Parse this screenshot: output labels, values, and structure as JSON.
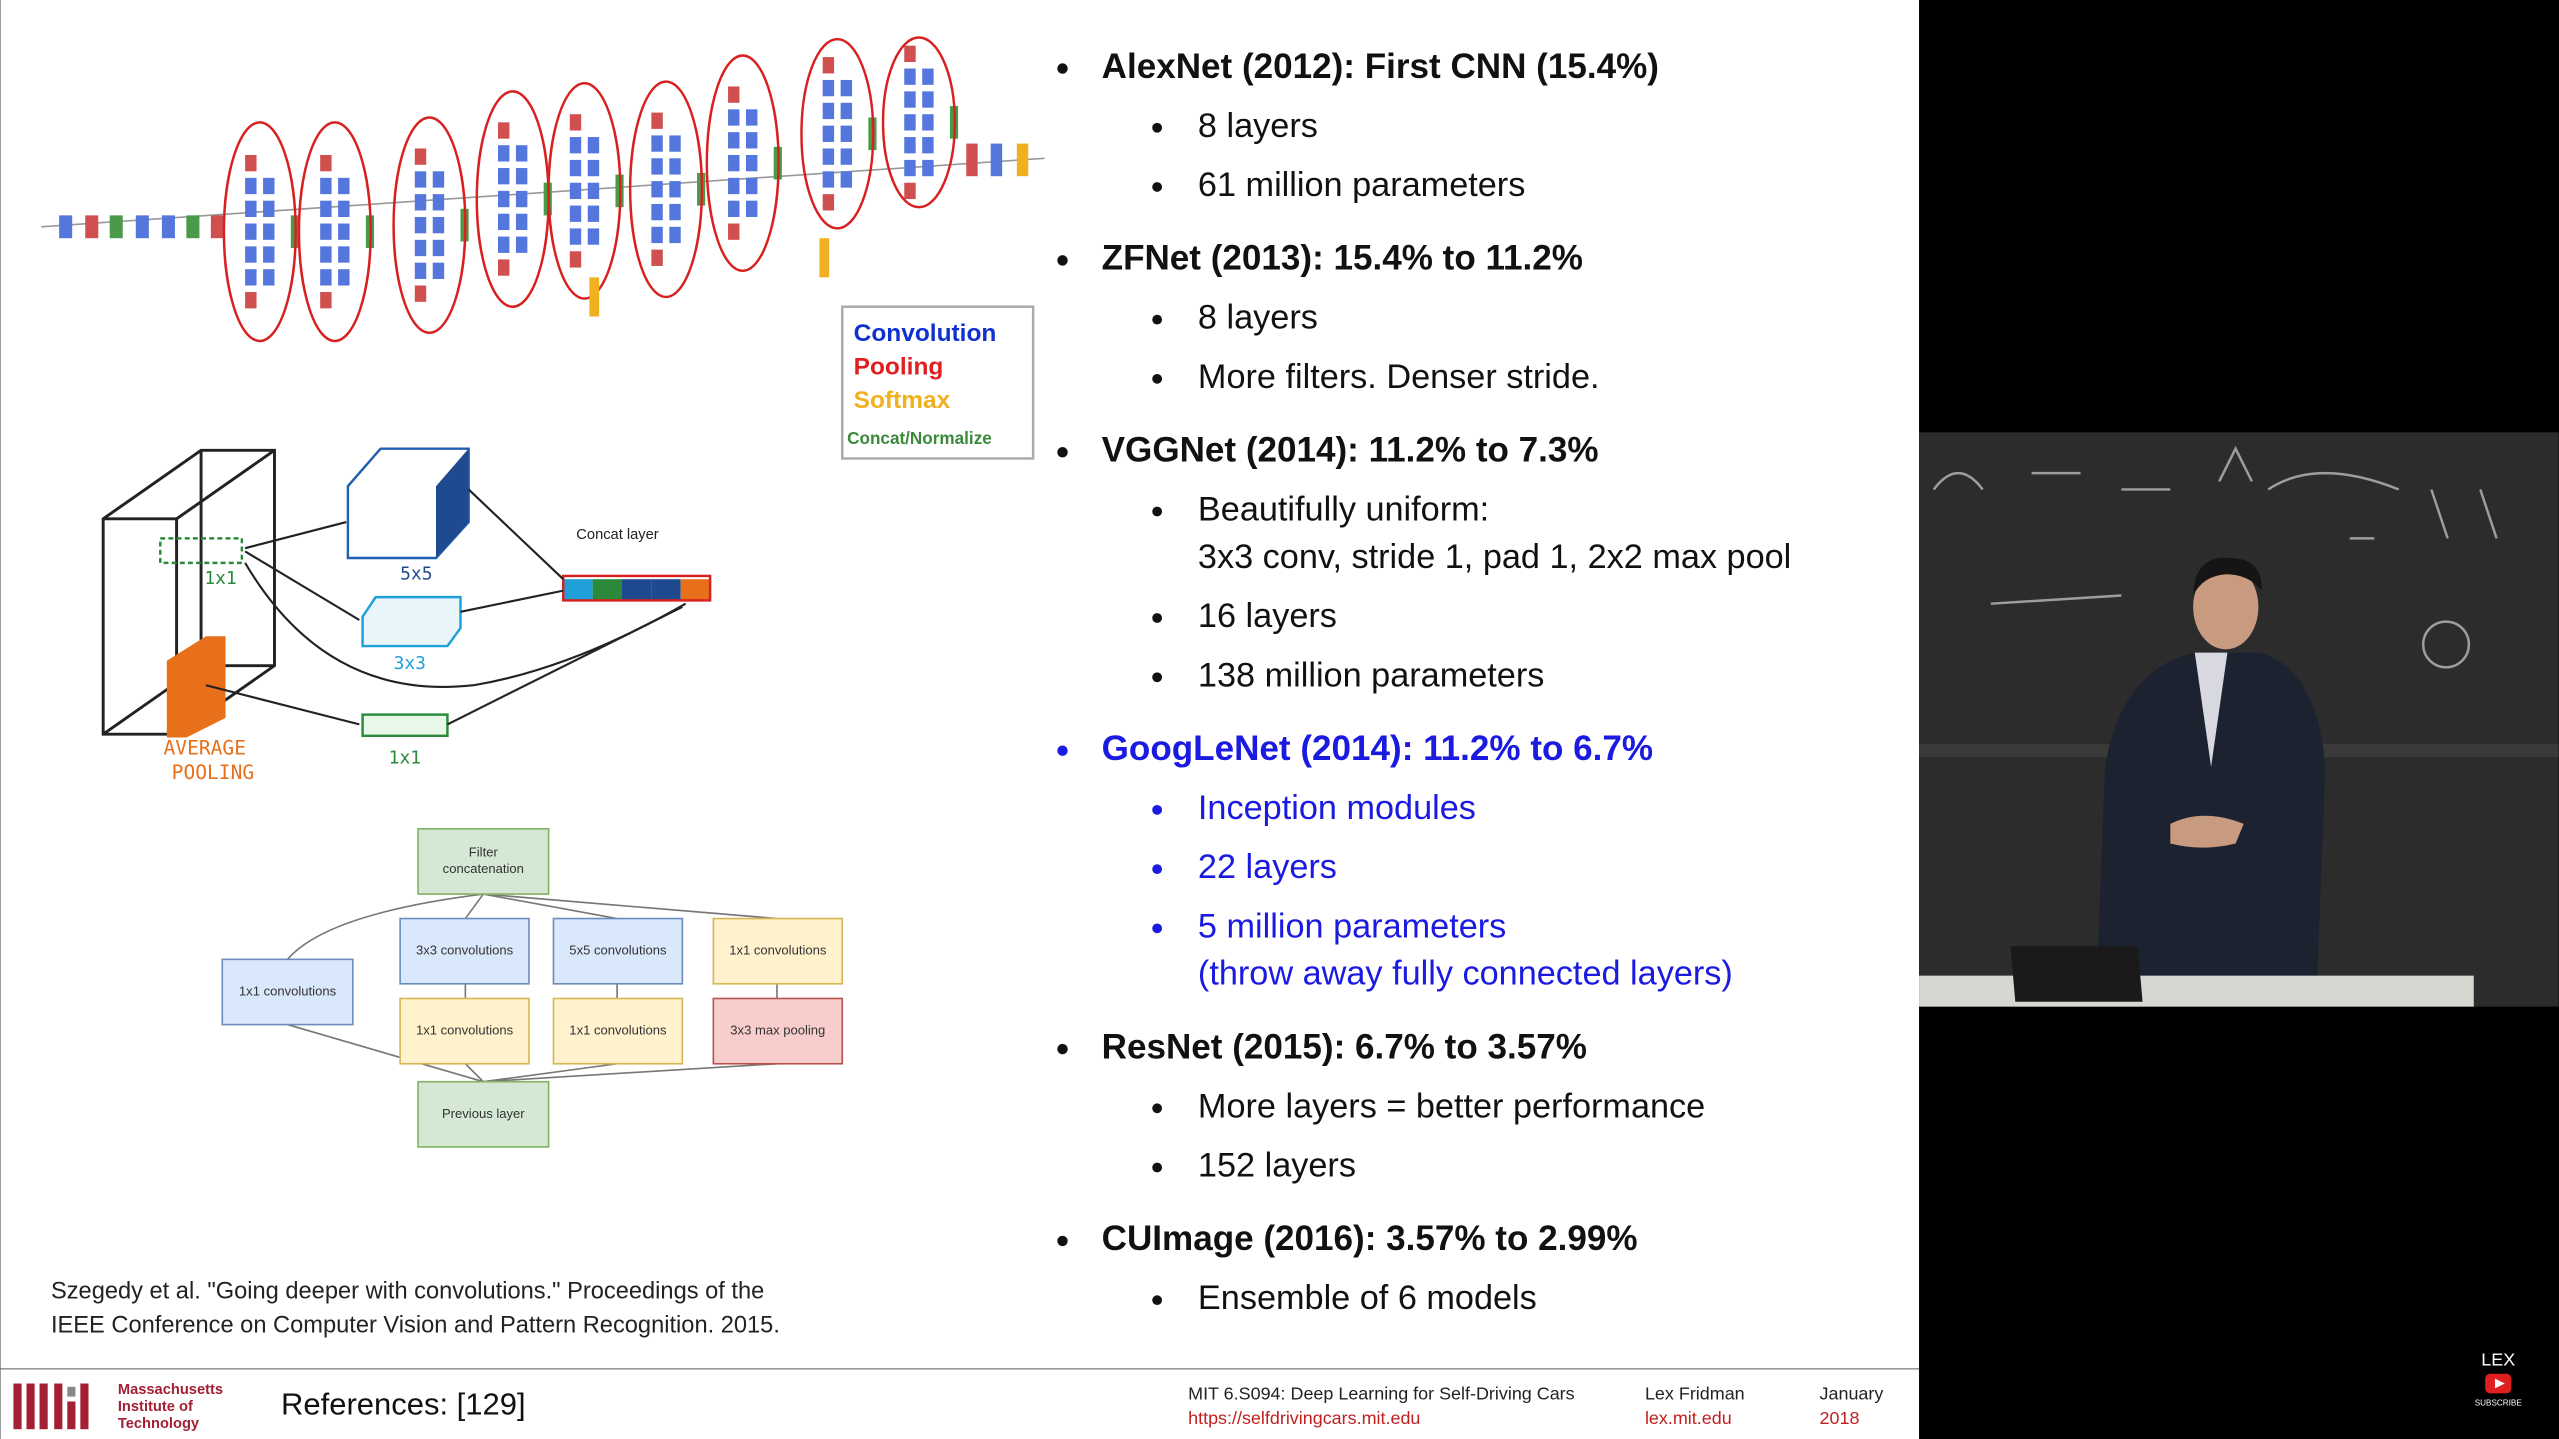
{
  "slide": {
    "bullets": [
      {
        "title": "AlexNet (2012): First CNN (15.4%)",
        "items": [
          [
            "8 layers"
          ],
          [
            "61 million parameters"
          ]
        ]
      },
      {
        "title": "ZFNet (2013): 15.4% to 11.2%",
        "items": [
          [
            "8 layers"
          ],
          [
            "More filters. Denser stride."
          ]
        ]
      },
      {
        "title": "VGGNet (2014): 11.2% to 7.3%",
        "items": [
          [
            "Beautifully uniform:",
            "3x3 conv, stride 1, pad 1, 2x2 max pool"
          ],
          [
            "16 layers"
          ],
          [
            "138 million parameters"
          ]
        ]
      },
      {
        "title": "GoogLeNet (2014): 11.2% to 6.7%",
        "color": "#1a1ae0",
        "items": [
          [
            "Inception modules"
          ],
          [
            "22 layers"
          ],
          [
            "5 million parameters",
            "(throw away fully connected layers)"
          ]
        ]
      },
      {
        "title": "ResNet (2015): 6.7% to 3.57%",
        "items": [
          [
            "More layers = better performance"
          ],
          [
            "152 layers"
          ]
        ]
      },
      {
        "title": "CUImage (2016): 3.57% to 2.99%",
        "items": [
          [
            "Ensemble of 6 models"
          ]
        ]
      }
    ],
    "legend": [
      {
        "label": "Convolution",
        "color": "#1030d0"
      },
      {
        "label": "Pooling",
        "color": "#e02020"
      },
      {
        "label": "Softmax",
        "color": "#f0b020"
      },
      {
        "label": "Concat/Normalize",
        "color": "#3a8a3a"
      }
    ],
    "sketch": {
      "concat": "Concat layer",
      "labels": [
        "1x1",
        "5x5",
        "3x3",
        "1x1"
      ],
      "pooling": [
        "AVERAGE",
        "POOLING"
      ]
    },
    "module": {
      "top": [
        "Filter",
        "concatenation"
      ],
      "boxes": [
        "1x1 convolutions",
        "3x3 convolutions",
        "5x5 convolutions",
        "1x1 convolutions",
        "1x1 convolutions",
        "1x1 convolutions",
        "3x3 max pooling"
      ],
      "bottom": "Previous layer"
    },
    "citation": [
      "Szegedy et al. \"Going deeper with convolutions.\" Proceedings of the",
      "IEEE Conference on Computer Vision and Pattern Recognition. 2015."
    ]
  },
  "footer": {
    "institute": [
      "Massachusetts",
      "Institute of",
      "Technology"
    ],
    "references": "References: [129]",
    "course": "MIT 6.S094: Deep Learning for Self-Driving Cars",
    "url": "https://selfdrivingcars.mit.edu",
    "author": "Lex Fridman",
    "site": "lex.mit.edu",
    "month": "January",
    "year": "2018"
  },
  "video": {
    "channel": "LEX",
    "subscribe": "SUBSCRIBE"
  }
}
